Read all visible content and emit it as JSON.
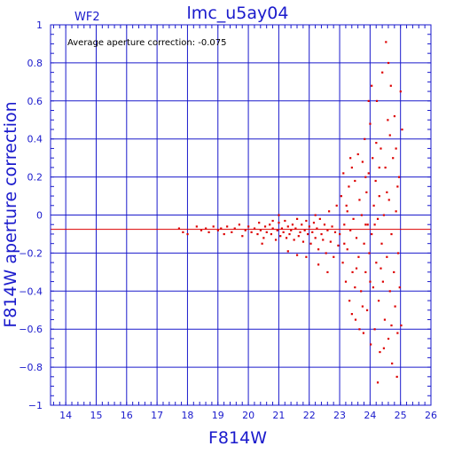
{
  "chart_data": {
    "type": "scatter",
    "title": "lmc_u5ay04",
    "chip_label": "WF2",
    "annotation": "Average aperture correction: -0.075",
    "xlabel": "F814W",
    "ylabel": "F814W aperture correction",
    "xlim": [
      13.5,
      26
    ],
    "ylim": [
      -1,
      1
    ],
    "x_ticks": [
      14,
      15,
      16,
      17,
      18,
      19,
      20,
      21,
      22,
      23,
      24,
      25,
      26
    ],
    "y_ticks": [
      -1,
      -0.8,
      -0.6,
      -0.4,
      -0.2,
      0,
      0.2,
      0.4,
      0.6,
      0.8,
      1
    ],
    "grid": true,
    "reference_lines": [
      {
        "y": 0,
        "color": "#1a1acc"
      },
      {
        "y": -0.075,
        "color": "#dd0000"
      }
    ],
    "colors": {
      "axes": "#1a1acc",
      "points": "#dd0000",
      "annotation": "#000000"
    },
    "series": [
      {
        "values": [
          [
            17.72,
            -0.07
          ],
          [
            17.85,
            -0.09
          ],
          [
            18.0,
            -0.1
          ],
          [
            18.3,
            -0.06
          ],
          [
            18.45,
            -0.08
          ],
          [
            18.6,
            -0.07
          ],
          [
            18.7,
            -0.09
          ],
          [
            18.85,
            -0.06
          ],
          [
            19.0,
            -0.08
          ],
          [
            19.1,
            -0.07
          ],
          [
            19.2,
            -0.1
          ],
          [
            19.3,
            -0.06
          ],
          [
            19.45,
            -0.09
          ],
          [
            19.55,
            -0.07
          ],
          [
            19.7,
            -0.05
          ],
          [
            19.8,
            -0.11
          ],
          [
            19.9,
            -0.08
          ],
          [
            20.0,
            -0.06
          ],
          [
            20.1,
            -0.09
          ],
          [
            20.2,
            -0.07
          ],
          [
            20.3,
            -0.1
          ],
          [
            20.35,
            -0.04
          ],
          [
            20.4,
            -0.08
          ],
          [
            20.5,
            -0.12
          ],
          [
            20.55,
            -0.06
          ],
          [
            20.6,
            -0.09
          ],
          [
            20.7,
            -0.05
          ],
          [
            20.75,
            -0.1
          ],
          [
            20.8,
            -0.07
          ],
          [
            20.9,
            -0.13
          ],
          [
            20.95,
            -0.08
          ],
          [
            21.0,
            -0.04
          ],
          [
            21.05,
            -0.11
          ],
          [
            21.1,
            -0.07
          ],
          [
            21.15,
            -0.09
          ],
          [
            21.2,
            -0.03
          ],
          [
            21.25,
            -0.12
          ],
          [
            21.3,
            -0.06
          ],
          [
            21.35,
            -0.1
          ],
          [
            21.4,
            -0.08
          ],
          [
            21.45,
            -0.05
          ],
          [
            21.5,
            -0.13
          ],
          [
            21.55,
            -0.07
          ],
          [
            21.6,
            -0.02
          ],
          [
            21.65,
            -0.11
          ],
          [
            21.7,
            -0.09
          ],
          [
            21.75,
            -0.05
          ],
          [
            21.8,
            -0.14
          ],
          [
            21.85,
            -0.08
          ],
          [
            21.9,
            -0.03
          ],
          [
            21.95,
            -0.1
          ],
          [
            22.0,
            -0.06
          ],
          [
            22.05,
            -0.15
          ],
          [
            22.1,
            -0.09
          ],
          [
            22.15,
            -0.04
          ],
          [
            22.2,
            -0.12
          ],
          [
            22.25,
            -0.07
          ],
          [
            22.3,
            -0.18
          ],
          [
            22.35,
            -0.02
          ],
          [
            22.4,
            -0.1
          ],
          [
            22.45,
            -0.13
          ],
          [
            22.5,
            -0.05
          ],
          [
            22.55,
            -0.2
          ],
          [
            22.6,
            -0.08
          ],
          [
            22.65,
            0.02
          ],
          [
            22.7,
            -0.14
          ],
          [
            22.75,
            -0.06
          ],
          [
            22.8,
            -0.22
          ],
          [
            22.85,
            -0.09
          ],
          [
            22.9,
            0.05
          ],
          [
            22.95,
            -0.16
          ],
          [
            20.45,
            -0.15
          ],
          [
            21.3,
            -0.19
          ],
          [
            21.9,
            -0.22
          ],
          [
            22.3,
            -0.26
          ],
          [
            22.6,
            -0.3
          ],
          [
            21.0,
            0.0
          ],
          [
            21.6,
            -0.21
          ],
          [
            20.8,
            -0.03
          ],
          [
            22.2,
            0.0
          ],
          [
            23.0,
            -0.1
          ],
          [
            23.05,
            0.1
          ],
          [
            23.1,
            -0.25
          ],
          [
            23.12,
            0.22
          ],
          [
            23.15,
            -0.05
          ],
          [
            23.2,
            -0.35
          ],
          [
            23.22,
            0.05
          ],
          [
            23.25,
            -0.18
          ],
          [
            23.3,
            0.15
          ],
          [
            23.32,
            -0.45
          ],
          [
            23.35,
            -0.08
          ],
          [
            23.4,
            0.25
          ],
          [
            23.42,
            -0.3
          ],
          [
            23.45,
            -0.02
          ],
          [
            23.5,
            0.18
          ],
          [
            23.52,
            -0.55
          ],
          [
            23.55,
            -0.12
          ],
          [
            23.6,
            0.32
          ],
          [
            23.62,
            -0.22
          ],
          [
            23.65,
            0.08
          ],
          [
            23.7,
            -0.4
          ],
          [
            23.72,
            0.0
          ],
          [
            23.75,
            0.28
          ],
          [
            23.78,
            -0.62
          ],
          [
            23.8,
            -0.15
          ],
          [
            23.82,
            0.4
          ],
          [
            23.85,
            -0.3
          ],
          [
            23.88,
            0.12
          ],
          [
            23.9,
            -0.5
          ],
          [
            23.92,
            -0.05
          ],
          [
            23.95,
            0.22
          ],
          [
            23.97,
            -0.2
          ],
          [
            24.0,
            0.48
          ],
          [
            24.02,
            -0.68
          ],
          [
            24.05,
            -0.1
          ],
          [
            24.08,
            0.3
          ],
          [
            24.1,
            -0.38
          ],
          [
            24.12,
            0.05
          ],
          [
            24.15,
            -0.6
          ],
          [
            24.18,
            0.18
          ],
          [
            24.2,
            -0.25
          ],
          [
            24.22,
            0.6
          ],
          [
            24.25,
            -0.02
          ],
          [
            24.28,
            -0.45
          ],
          [
            24.3,
            0.1
          ],
          [
            24.32,
            -0.72
          ],
          [
            24.35,
            0.35
          ],
          [
            24.38,
            -0.15
          ],
          [
            24.4,
            0.75
          ],
          [
            24.42,
            -0.35
          ],
          [
            24.45,
            0.0
          ],
          [
            24.48,
            -0.55
          ],
          [
            24.5,
            0.25
          ],
          [
            24.52,
            0.91
          ],
          [
            24.55,
            -0.22
          ],
          [
            24.58,
            0.5
          ],
          [
            24.6,
            -0.65
          ],
          [
            24.62,
            0.08
          ],
          [
            24.65,
            -0.4
          ],
          [
            24.68,
            0.68
          ],
          [
            24.7,
            -0.1
          ],
          [
            24.72,
            -0.78
          ],
          [
            24.75,
            0.3
          ],
          [
            24.78,
            -0.3
          ],
          [
            24.8,
            0.52
          ],
          [
            24.82,
            -0.48
          ],
          [
            24.85,
            0.02
          ],
          [
            24.88,
            -0.85
          ],
          [
            24.9,
            0.15
          ],
          [
            24.92,
            -0.2
          ],
          [
            24.95,
            0.2
          ],
          [
            24.97,
            -0.38
          ],
          [
            25.0,
            0.65
          ],
          [
            25.02,
            -0.58
          ],
          [
            25.05,
            0.45
          ],
          [
            23.25,
            0.02
          ],
          [
            23.55,
            -0.28
          ],
          [
            23.85,
            0.2
          ],
          [
            24.15,
            -0.05
          ],
          [
            24.45,
            -0.7
          ],
          [
            23.65,
            -0.6
          ],
          [
            24.0,
            -0.35
          ],
          [
            24.3,
            0.25
          ],
          [
            24.6,
            0.8
          ],
          [
            23.95,
            0.6
          ],
          [
            23.4,
            -0.52
          ],
          [
            24.7,
            -0.58
          ],
          [
            23.15,
            -0.15
          ],
          [
            24.2,
            0.38
          ],
          [
            24.55,
            0.12
          ],
          [
            23.35,
            0.3
          ],
          [
            23.75,
            -0.48
          ],
          [
            24.05,
            0.68
          ],
          [
            24.35,
            -0.28
          ],
          [
            24.65,
            0.42
          ],
          [
            24.9,
            -0.62
          ],
          [
            23.5,
            -0.38
          ],
          [
            24.85,
            0.35
          ],
          [
            24.25,
            -0.88
          ],
          [
            23.85,
            -0.05
          ]
        ]
      }
    ]
  }
}
